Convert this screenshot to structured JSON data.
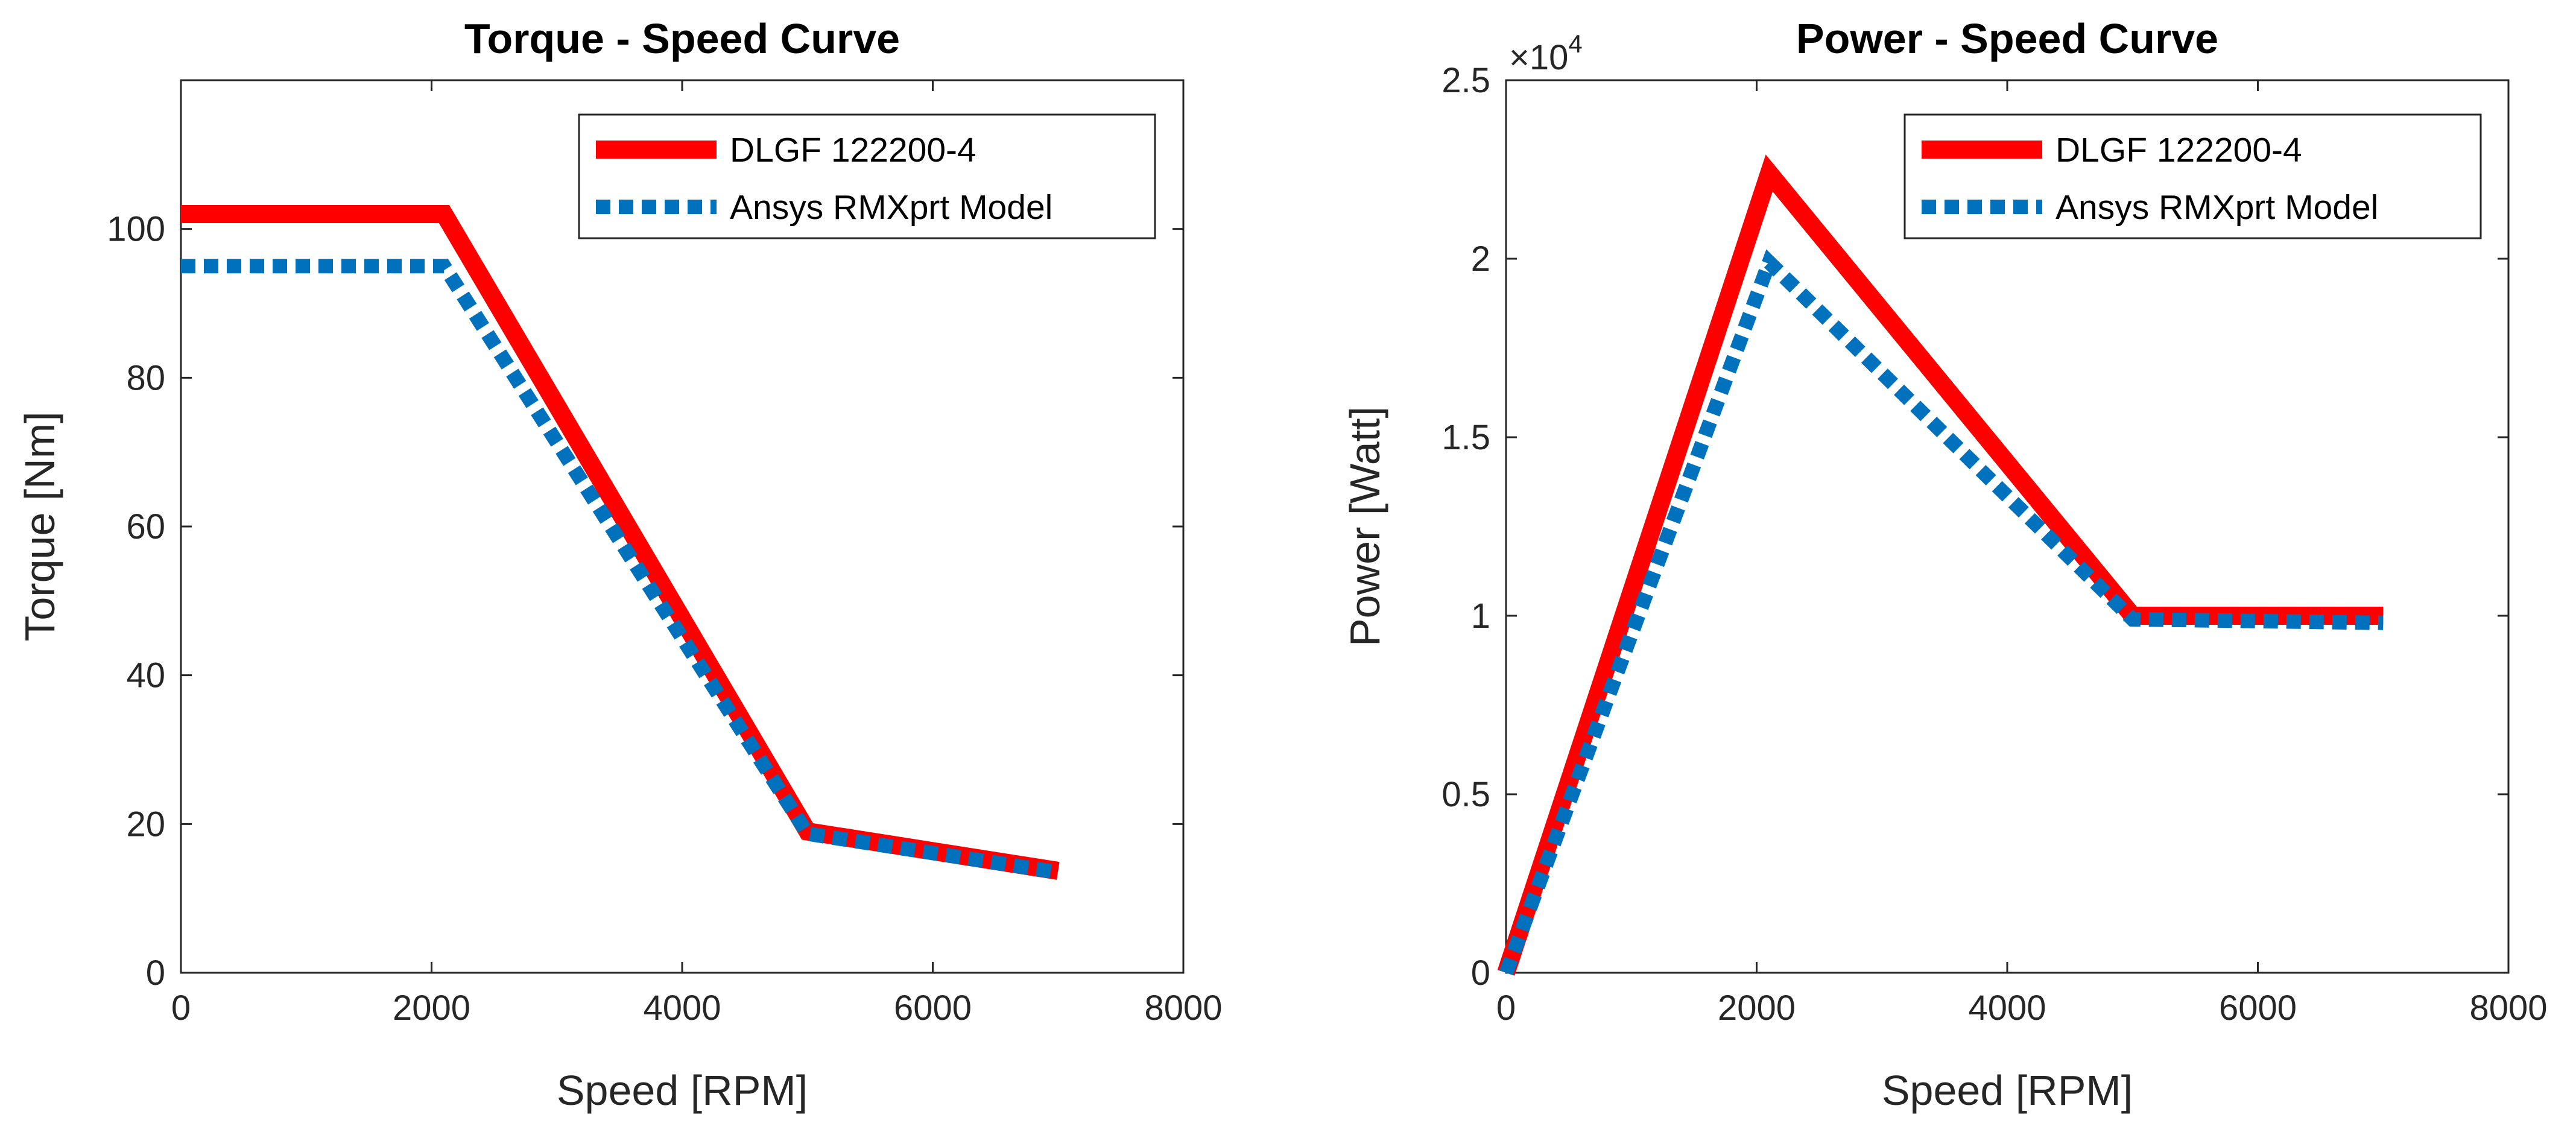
{
  "chart_data": [
    {
      "type": "line",
      "title": "Torque - Speed Curve",
      "xlabel": "Speed [RPM]",
      "ylabel": "Torque [Nm]",
      "xlim": [
        0,
        8000
      ],
      "ylim": [
        0,
        120
      ],
      "xticks": [
        0,
        2000,
        4000,
        6000,
        8000
      ],
      "xtick_labels": [
        "0",
        "2000",
        "4000",
        "6000",
        "8000"
      ],
      "yticks": [
        0,
        20,
        40,
        60,
        80,
        100
      ],
      "ytick_labels": [
        "0",
        "20",
        "40",
        "60",
        "80",
        "100"
      ],
      "grid": false,
      "legend_position": "top-right",
      "series": [
        {
          "name": "DLGF 122200-4",
          "color": "#ff0000",
          "style": "solid",
          "x": [
            0,
            2100,
            5000,
            7000
          ],
          "y": [
            102,
            102,
            19,
            13.7
          ]
        },
        {
          "name": "Ansys RMXprt Model",
          "color": "#0072bd",
          "style": "dotted",
          "x": [
            0,
            2100,
            5000,
            7000
          ],
          "y": [
            95,
            95,
            18.7,
            13.5
          ]
        }
      ]
    },
    {
      "type": "line",
      "title": "Power - Speed Curve",
      "xlabel": "Speed [RPM]",
      "ylabel": "Power [Watt]",
      "axis_exponent_base": "×10",
      "axis_exponent_power": "4",
      "xlim": [
        0,
        8000
      ],
      "ylim": [
        0,
        25000
      ],
      "xticks": [
        0,
        2000,
        4000,
        6000,
        8000
      ],
      "xtick_labels": [
        "0",
        "2000",
        "4000",
        "6000",
        "8000"
      ],
      "yticks": [
        0,
        5000,
        10000,
        15000,
        20000,
        25000
      ],
      "ytick_labels": [
        "0",
        "0.5",
        "1",
        "1.5",
        "2",
        "2.5"
      ],
      "grid": false,
      "legend_position": "top-right",
      "series": [
        {
          "name": "DLGF 122200-4",
          "color": "#ff0000",
          "style": "solid",
          "x": [
            0,
            2100,
            5000,
            7000
          ],
          "y": [
            0,
            22400,
            10000,
            10000
          ]
        },
        {
          "name": "Ansys RMXprt Model",
          "color": "#0072bd",
          "style": "dotted",
          "x": [
            0,
            2100,
            5000,
            7000
          ],
          "y": [
            0,
            19900,
            9900,
            9800
          ]
        }
      ]
    }
  ]
}
